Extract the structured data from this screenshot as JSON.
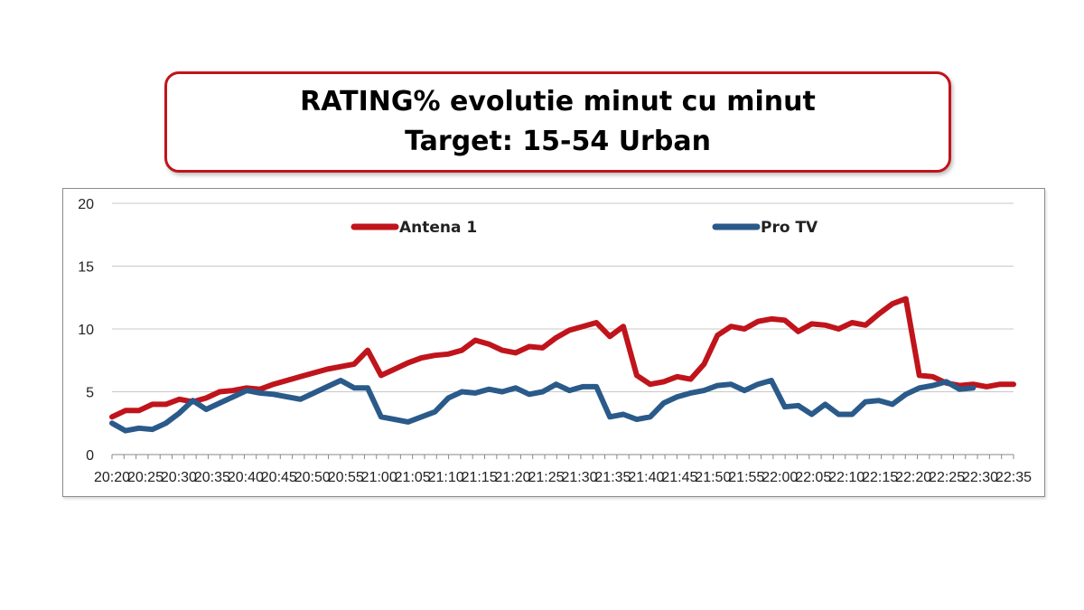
{
  "header": {
    "title_line1": "RATING% evolutie minut cu minut",
    "title_line2": "Target: 15-54 Urban"
  },
  "colors": {
    "antena1": "#c0141c",
    "protv": "#2a5a8a",
    "title_border": "#c0141c",
    "grid": "#c8c8c8"
  },
  "chart_data": {
    "type": "line",
    "title": "RATING% evolutie minut cu minut",
    "subtitle": "Target: 15-54 Urban",
    "xlabel": "",
    "ylabel": "",
    "ylim": [
      0,
      20
    ],
    "yticks": [
      0,
      5,
      10,
      15,
      20
    ],
    "grid": "horizontal",
    "legend": "top",
    "x": [
      "20:20",
      "20:25",
      "20:30",
      "20:35",
      "20:40",
      "20:45",
      "20:50",
      "20:55",
      "21:00",
      "21:05",
      "21:10",
      "21:15",
      "21:20",
      "21:25",
      "21:30",
      "21:35",
      "21:40",
      "21:45",
      "21:50",
      "21:55",
      "22:00",
      "22:05",
      "22:10",
      "22:15",
      "22:20",
      "22:25",
      "22:30",
      "22:35"
    ],
    "series": [
      {
        "name": "Antena 1",
        "color": "#c0141c",
        "values": [
          [
            0,
            3.0
          ],
          [
            1,
            3.5
          ],
          [
            2,
            3.5
          ],
          [
            3,
            4.0
          ],
          [
            4,
            4.0
          ],
          [
            5,
            4.4
          ],
          [
            6,
            4.2
          ],
          [
            7,
            4.5
          ],
          [
            8,
            5.0
          ],
          [
            9,
            5.1
          ],
          [
            10,
            5.3
          ],
          [
            11,
            5.2
          ],
          [
            12,
            5.6
          ],
          [
            13,
            5.9
          ],
          [
            14,
            6.2
          ],
          [
            15,
            6.5
          ],
          [
            16,
            6.8
          ],
          [
            17,
            7.0
          ],
          [
            18,
            7.2
          ],
          [
            19,
            8.3
          ],
          [
            20,
            6.3
          ],
          [
            21,
            6.8
          ],
          [
            22,
            7.3
          ],
          [
            23,
            7.7
          ],
          [
            24,
            7.9
          ],
          [
            25,
            8.0
          ],
          [
            26,
            8.3
          ],
          [
            27,
            9.1
          ],
          [
            28,
            8.8
          ],
          [
            29,
            8.3
          ],
          [
            30,
            8.1
          ],
          [
            31,
            8.6
          ],
          [
            32,
            8.5
          ],
          [
            33,
            9.3
          ],
          [
            34,
            9.9
          ],
          [
            35,
            10.2
          ],
          [
            36,
            10.5
          ],
          [
            37,
            9.4
          ],
          [
            38,
            10.2
          ],
          [
            39,
            6.3
          ],
          [
            40,
            5.6
          ],
          [
            41,
            5.8
          ],
          [
            42,
            6.2
          ],
          [
            43,
            6.0
          ],
          [
            44,
            7.2
          ],
          [
            45,
            9.5
          ],
          [
            46,
            10.2
          ],
          [
            47,
            10.0
          ],
          [
            48,
            10.6
          ],
          [
            49,
            10.8
          ],
          [
            50,
            10.7
          ],
          [
            51,
            9.8
          ],
          [
            52,
            10.4
          ],
          [
            53,
            10.3
          ],
          [
            54,
            10.0
          ],
          [
            55,
            10.5
          ],
          [
            56,
            10.3
          ],
          [
            57,
            11.2
          ],
          [
            58,
            12.0
          ],
          [
            59,
            12.4
          ],
          [
            60,
            6.3
          ],
          [
            61,
            6.2
          ],
          [
            62,
            5.7
          ],
          [
            63,
            5.5
          ],
          [
            64,
            5.6
          ],
          [
            65,
            5.4
          ],
          [
            66,
            5.6
          ],
          [
            67,
            5.6
          ]
        ]
      },
      {
        "name": "Pro TV",
        "color": "#2a5a8a",
        "values": [
          [
            0,
            2.5
          ],
          [
            1,
            1.9
          ],
          [
            2,
            2.1
          ],
          [
            3,
            2.0
          ],
          [
            4,
            2.5
          ],
          [
            5,
            3.3
          ],
          [
            6,
            4.3
          ],
          [
            7,
            3.6
          ],
          [
            8,
            4.1
          ],
          [
            9,
            4.6
          ],
          [
            10,
            5.1
          ],
          [
            11,
            4.9
          ],
          [
            12,
            4.8
          ],
          [
            13,
            4.6
          ],
          [
            14,
            4.4
          ],
          [
            15,
            4.9
          ],
          [
            16,
            5.4
          ],
          [
            17,
            5.9
          ],
          [
            18,
            5.3
          ],
          [
            19,
            5.3
          ],
          [
            20,
            3.0
          ],
          [
            21,
            2.8
          ],
          [
            22,
            2.6
          ],
          [
            23,
            3.0
          ],
          [
            24,
            3.4
          ],
          [
            25,
            4.5
          ],
          [
            26,
            5.0
          ],
          [
            27,
            4.9
          ],
          [
            28,
            5.2
          ],
          [
            29,
            5.0
          ],
          [
            30,
            5.3
          ],
          [
            31,
            4.8
          ],
          [
            32,
            5.0
          ],
          [
            33,
            5.6
          ],
          [
            34,
            5.1
          ],
          [
            35,
            5.4
          ],
          [
            36,
            5.4
          ],
          [
            37,
            3.0
          ],
          [
            38,
            3.2
          ],
          [
            39,
            2.8
          ],
          [
            40,
            3.0
          ],
          [
            41,
            4.1
          ],
          [
            42,
            4.6
          ],
          [
            43,
            4.9
          ],
          [
            44,
            5.1
          ],
          [
            45,
            5.5
          ],
          [
            46,
            5.6
          ],
          [
            47,
            5.1
          ],
          [
            48,
            5.6
          ],
          [
            49,
            5.9
          ],
          [
            50,
            3.8
          ],
          [
            51,
            3.9
          ],
          [
            52,
            3.2
          ],
          [
            53,
            4.0
          ],
          [
            54,
            3.2
          ],
          [
            55,
            3.2
          ],
          [
            56,
            4.2
          ],
          [
            57,
            4.3
          ],
          [
            58,
            4.0
          ],
          [
            59,
            4.8
          ],
          [
            60,
            5.3
          ],
          [
            61,
            5.5
          ],
          [
            62,
            5.8
          ],
          [
            63,
            5.2
          ],
          [
            64,
            5.3
          ]
        ]
      }
    ]
  }
}
